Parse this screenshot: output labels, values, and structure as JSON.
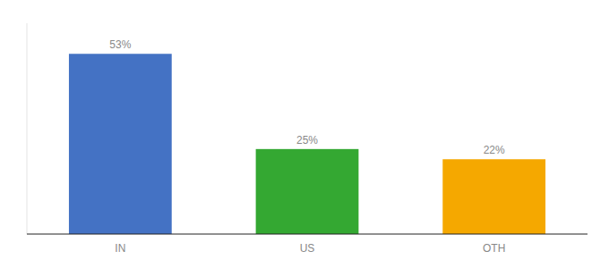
{
  "chart_data": {
    "type": "bar",
    "categories": [
      "IN",
      "US",
      "OTH"
    ],
    "values": [
      53,
      25,
      22
    ],
    "value_labels": [
      "53%",
      "25%",
      "22%"
    ],
    "colors": [
      "#4472c4",
      "#34a832",
      "#f5a800"
    ],
    "ylim": [
      0,
      62
    ],
    "data_labels": true,
    "tick_labels": "x"
  }
}
